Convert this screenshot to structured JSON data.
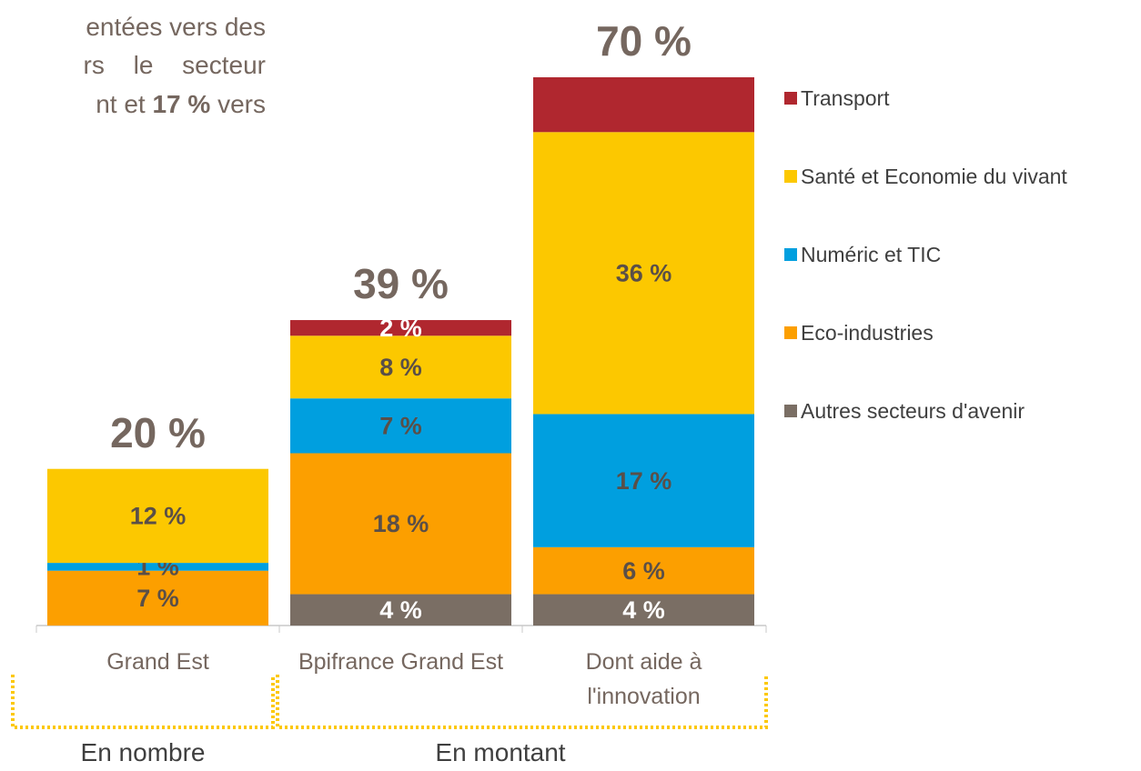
{
  "chart_data": {
    "type": "stacked_bar",
    "intro": {
      "line1": "entées vers des",
      "line2": "rs le secteur",
      "line3_a": "nt et",
      "line3_bold": "17 %",
      "line3_b": "vers"
    },
    "categories": [
      "Grand Est",
      "Bpifrance Grand Est",
      "Dont aide à l'innovation"
    ],
    "series": [
      {
        "name": "Autres secteurs d'avenir",
        "color": "#7a6e64",
        "label_color": "#ffffff",
        "values": [
          0,
          4,
          4
        ],
        "value_labels": [
          null,
          "4 %",
          "4 %"
        ]
      },
      {
        "name": "Eco-industries",
        "color": "#fc9f00",
        "label_color": "#5a4f48",
        "values": [
          7,
          18,
          6
        ],
        "value_labels": [
          "7 %",
          "18 %",
          "6 %"
        ]
      },
      {
        "name": "Numéric et TIC",
        "color": "#009fdf",
        "label_color": "#5a4f48",
        "values": [
          1,
          7,
          17
        ],
        "value_labels": [
          "1 %",
          "7 %",
          "17 %"
        ]
      },
      {
        "name": "Santé et Economie du vivant",
        "color": "#fcc800",
        "label_color": "#5a4f48",
        "values": [
          12,
          8,
          36
        ],
        "value_labels": [
          "12 %",
          "8 %",
          "36 %"
        ]
      },
      {
        "name": "Transport",
        "color": "#b0272f",
        "label_color": "#ffffff",
        "values": [
          0,
          2,
          7
        ],
        "value_labels": [
          null,
          "2 %",
          null
        ]
      }
    ],
    "total_labels": [
      "20 %",
      "39 %",
      "70 %"
    ],
    "groups": [
      "En nombre",
      "En montant"
    ],
    "ylim": [
      0,
      70
    ],
    "legend": "right"
  }
}
